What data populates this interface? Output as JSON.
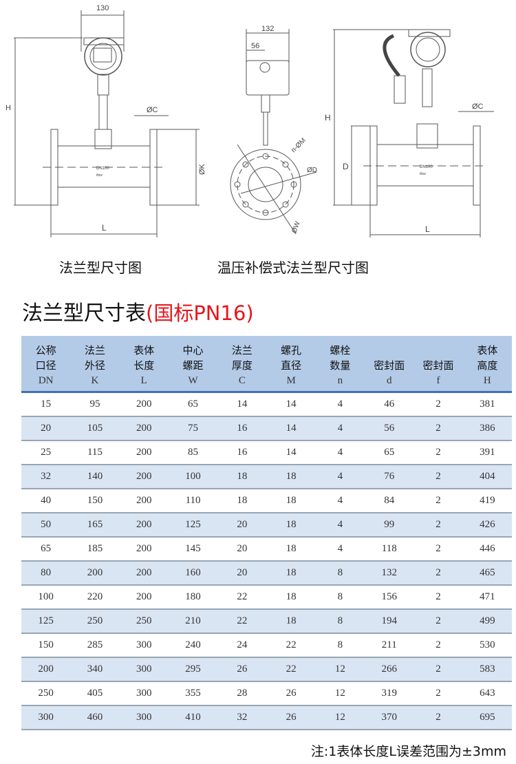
{
  "drawings": {
    "flange": {
      "dim_width": "130",
      "dim_height": "H",
      "dim_flange_thickness": "ØC",
      "dim_flange_diameter": "ØK",
      "dim_length": "L",
      "body_label": "DN100",
      "flow_label": "flow"
    },
    "side": {
      "dim_width": "132",
      "dim_offset": "56",
      "dim_bolt_holes": "n-ØM",
      "dim_seal": "ØD",
      "dim_bolt_circle": "ØW"
    },
    "compensated": {
      "dim_height": "H",
      "dim_seal": "D",
      "dim_flange_thickness": "ØC",
      "dim_length": "L",
      "body_label": "DN100",
      "flow_label": "flow"
    },
    "caption_flange": "法兰型尺寸图",
    "caption_compensated": "温压补偿式法兰型尺寸图"
  },
  "table_title": "法兰型尺寸表",
  "table_title_standard": "(国标PN16)",
  "colors": {
    "header_bg": "#b4cbe8",
    "header_line": "#3f6fb6",
    "alt_row": "#dae5f4",
    "accent_red": "#e8141b"
  },
  "table": {
    "headers": [
      {
        "l1": "公称",
        "l2": "口径",
        "sym": "DN"
      },
      {
        "l1": "法兰",
        "l2": "外径",
        "sym": "K"
      },
      {
        "l1": "表体",
        "l2": "长度",
        "sym": "L"
      },
      {
        "l1": "中心",
        "l2": "螺距",
        "sym": "W"
      },
      {
        "l1": "法兰",
        "l2": "厚度",
        "sym": "C"
      },
      {
        "l1": "螺孔",
        "l2": "直径",
        "sym": "M"
      },
      {
        "l1": "螺栓",
        "l2": "数量",
        "sym": "n"
      },
      {
        "l1": "",
        "l2": "密封面",
        "sym": "d"
      },
      {
        "l1": "",
        "l2": "密封面",
        "sym": "f"
      },
      {
        "l1": "表体",
        "l2": "高度",
        "sym": "H"
      }
    ],
    "rows": [
      [
        "15",
        "95",
        "200",
        "65",
        "14",
        "14",
        "4",
        "46",
        "2",
        "381"
      ],
      [
        "20",
        "105",
        "200",
        "75",
        "16",
        "14",
        "4",
        "56",
        "2",
        "386"
      ],
      [
        "25",
        "115",
        "200",
        "85",
        "16",
        "14",
        "4",
        "65",
        "2",
        "391"
      ],
      [
        "32",
        "140",
        "200",
        "100",
        "18",
        "18",
        "4",
        "76",
        "2",
        "404"
      ],
      [
        "40",
        "150",
        "200",
        "110",
        "18",
        "18",
        "4",
        "84",
        "2",
        "419"
      ],
      [
        "50",
        "165",
        "200",
        "125",
        "20",
        "18",
        "4",
        "99",
        "2",
        "426"
      ],
      [
        "65",
        "185",
        "200",
        "145",
        "20",
        "18",
        "4",
        "118",
        "2",
        "446"
      ],
      [
        "80",
        "200",
        "200",
        "160",
        "20",
        "18",
        "8",
        "132",
        "2",
        "465"
      ],
      [
        "100",
        "220",
        "200",
        "180",
        "22",
        "18",
        "8",
        "156",
        "2",
        "471"
      ],
      [
        "125",
        "250",
        "250",
        "210",
        "22",
        "18",
        "8",
        "194",
        "2",
        "499"
      ],
      [
        "150",
        "285",
        "300",
        "240",
        "24",
        "22",
        "8",
        "211",
        "2",
        "530"
      ],
      [
        "200",
        "340",
        "300",
        "295",
        "26",
        "22",
        "12",
        "266",
        "2",
        "583"
      ],
      [
        "250",
        "405",
        "300",
        "355",
        "28",
        "26",
        "12",
        "319",
        "2",
        "643"
      ],
      [
        "300",
        "460",
        "300",
        "410",
        "32",
        "26",
        "12",
        "370",
        "2",
        "695"
      ]
    ]
  },
  "note": "注:1表体长度L误差范围为±3mm"
}
